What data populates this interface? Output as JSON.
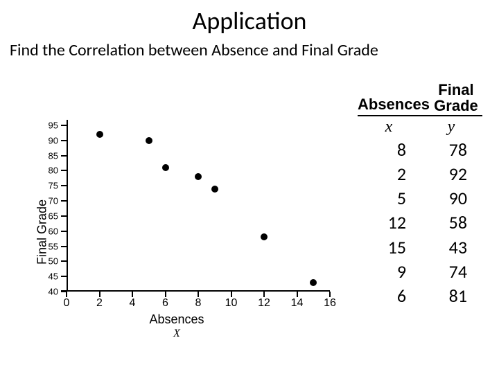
{
  "title": "Application",
  "subtitle": "Find the Correlation between Absence and Final Grade",
  "table": {
    "header_col1": "Absences",
    "header_col2_line1": "Final",
    "header_col2_line2": "Grade",
    "xlabel": "x",
    "ylabel": "y",
    "rows": [
      {
        "x": "8",
        "y": "78"
      },
      {
        "x": "2",
        "y": "92"
      },
      {
        "x": "5",
        "y": "90"
      },
      {
        "x": "12",
        "y": "58"
      },
      {
        "x": "15",
        "y": "43"
      },
      {
        "x": "9",
        "y": "74"
      },
      {
        "x": "6",
        "y": "81"
      }
    ]
  },
  "chart": {
    "type": "scatter",
    "xlabel": "Absences",
    "xvar": "X",
    "ylabel": "Final Grade",
    "xlim": [
      0,
      16
    ],
    "ylim": [
      40,
      95
    ],
    "xticks": [
      0,
      2,
      4,
      6,
      8,
      10,
      12,
      14,
      16
    ],
    "yticks": [
      95,
      90,
      85,
      80,
      75,
      70,
      65,
      60,
      55,
      50,
      45,
      40
    ],
    "point_color": "#000000",
    "point_radius": 5,
    "axis_color": "#000000",
    "background_color": "#ffffff",
    "tick_fontsize_y": 13,
    "tick_fontsize_x": 16,
    "label_fontsize": 18,
    "points": [
      {
        "x": 2,
        "y": 92
      },
      {
        "x": 5,
        "y": 90
      },
      {
        "x": 6,
        "y": 81
      },
      {
        "x": 8,
        "y": 78
      },
      {
        "x": 9,
        "y": 74
      },
      {
        "x": 12,
        "y": 58
      },
      {
        "x": 15,
        "y": 43
      }
    ]
  }
}
